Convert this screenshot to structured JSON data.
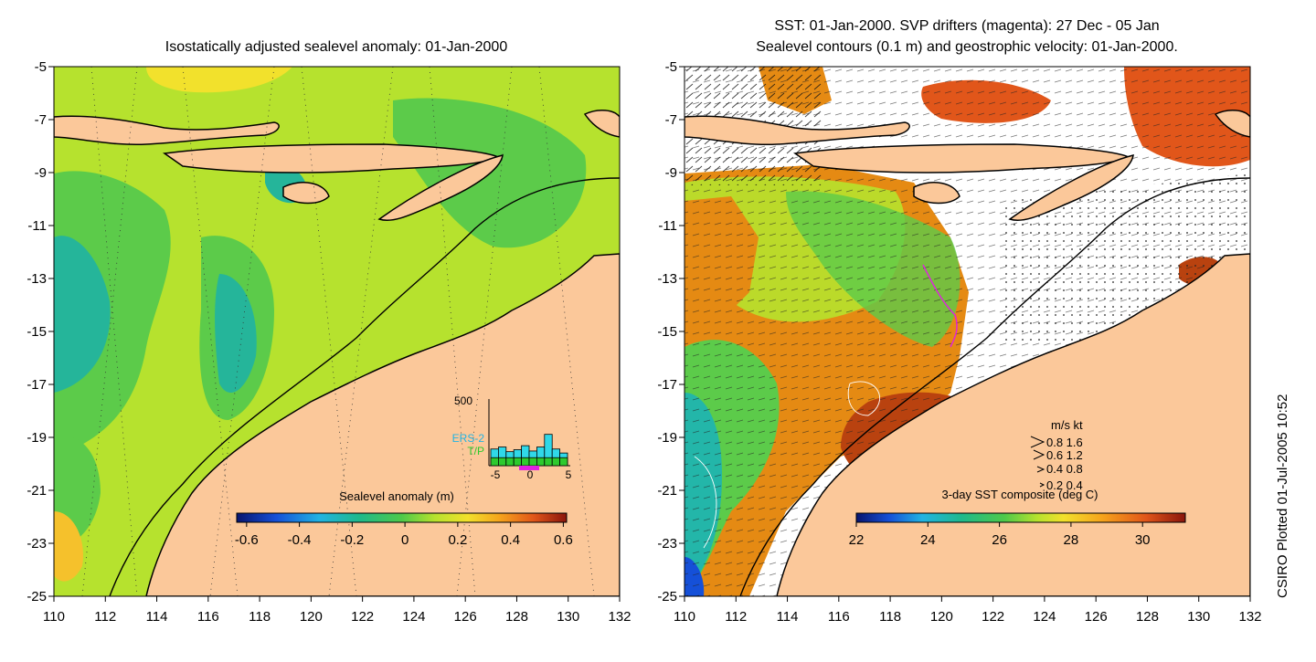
{
  "left_map": {
    "title": "Isostatically adjusted sealevel anomaly: 01-Jan-2000",
    "x_ticks": [
      "110",
      "112",
      "114",
      "116",
      "118",
      "120",
      "122",
      "124",
      "126",
      "128",
      "130",
      "132"
    ],
    "y_ticks": [
      "-5",
      "-7",
      "-9",
      "-11",
      "-13",
      "-15",
      "-17",
      "-19",
      "-21",
      "-23",
      "-25"
    ],
    "colorbar_title": "Sealevel anomaly (m)",
    "colorbar_ticks": [
      "-0.6",
      "-0.4",
      "-0.2",
      "0",
      "0.2",
      "0.4",
      "0.6"
    ],
    "inset": {
      "y_max": "500",
      "x_ticks": [
        "-5",
        "0",
        "5"
      ],
      "legend": [
        "ERS-2",
        "T/P"
      ],
      "bar_counts": [
        0.25,
        0.28,
        0.21,
        0.24,
        0.3,
        0.22,
        0.28,
        0.47,
        0.25,
        0.19
      ],
      "bar_counts_tp": [
        0.12,
        0.12,
        0.12,
        0.12,
        0.12,
        0.12,
        0.12,
        0.12,
        0.12,
        0.12
      ]
    }
  },
  "right_map": {
    "title_line1": "SST: 01-Jan-2000. SVP drifters (magenta): 27 Dec - 05 Jan",
    "title_line2": "Sealevel contours (0.1 m) and geostrophic velocity: 01-Jan-2000.",
    "x_ticks": [
      "110",
      "112",
      "114",
      "116",
      "118",
      "120",
      "122",
      "124",
      "126",
      "128",
      "130",
      "132"
    ],
    "y_ticks": [
      "-5",
      "-7",
      "-9",
      "-11",
      "-13",
      "-15",
      "-17",
      "-19",
      "-21",
      "-23",
      "-25"
    ],
    "colorbar_title": "3-day SST composite (deg C)",
    "colorbar_ticks": [
      "22",
      "24",
      "26",
      "28",
      "30"
    ],
    "velocity_legend": {
      "header": "m/s  kt",
      "rows": [
        "0.8  1.6",
        "0.6  1.2",
        "0.4  0.8",
        "0.2  0.4"
      ]
    }
  },
  "side_label": "CSIRO Plotted 01-Jul-2005 10:52",
  "colors": {
    "land": "#FBC89A",
    "sla_base": "#B6E22E",
    "sla_green": "#5CCB4A",
    "sla_teal": "#25B59A",
    "sst_orange": "#E58A13",
    "sst_darkred": "#B9420F",
    "sst_teal": "#23B6A9"
  }
}
